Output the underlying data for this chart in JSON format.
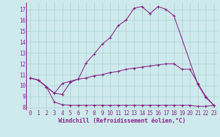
{
  "xlabel": "Windchill (Refroidissement éolien,°C)",
  "background_color": "#ceeaec",
  "grid_color": "#aad0d4",
  "line_color": "#882288",
  "xlim": [
    -0.5,
    23.5
  ],
  "ylim": [
    7.8,
    17.6
  ],
  "xticks": [
    0,
    1,
    2,
    3,
    4,
    5,
    6,
    7,
    8,
    9,
    10,
    11,
    12,
    13,
    14,
    15,
    16,
    17,
    18,
    19,
    20,
    21,
    22,
    23
  ],
  "yticks": [
    8,
    9,
    10,
    11,
    12,
    13,
    14,
    15,
    16,
    17
  ],
  "series1_x": [
    0,
    1,
    2,
    3,
    4,
    5,
    6,
    7,
    8,
    9,
    10,
    11,
    12,
    13,
    14,
    15,
    16,
    17,
    18,
    21,
    22,
    23
  ],
  "series1_y": [
    10.7,
    10.5,
    9.9,
    9.3,
    9.2,
    10.3,
    10.6,
    12.1,
    12.9,
    13.8,
    14.4,
    15.5,
    16.0,
    17.1,
    17.25,
    16.6,
    17.25,
    17.0,
    16.4,
    10.1,
    8.9,
    8.2
  ],
  "series2_x": [
    0,
    1,
    2,
    3,
    4,
    5,
    6,
    7,
    8,
    9,
    10,
    11,
    12,
    13,
    14,
    15,
    16,
    17,
    18,
    19,
    20,
    21,
    22,
    23
  ],
  "series2_y": [
    10.7,
    10.5,
    9.9,
    8.5,
    8.25,
    8.2,
    8.2,
    8.2,
    8.2,
    8.2,
    8.2,
    8.2,
    8.2,
    8.2,
    8.2,
    8.2,
    8.2,
    8.2,
    8.2,
    8.2,
    8.2,
    8.1,
    8.1,
    8.2
  ],
  "series3_x": [
    0,
    1,
    2,
    3,
    4,
    5,
    6,
    7,
    8,
    9,
    10,
    11,
    12,
    13,
    14,
    15,
    16,
    17,
    18,
    19,
    20,
    21,
    22,
    23
  ],
  "series3_y": [
    10.7,
    10.5,
    9.9,
    9.3,
    10.2,
    10.4,
    10.6,
    10.7,
    10.9,
    11.0,
    11.2,
    11.3,
    11.5,
    11.6,
    11.7,
    11.8,
    11.9,
    12.0,
    12.0,
    11.5,
    11.5,
    10.2,
    9.0,
    8.2
  ],
  "tick_fontsize": 5.5,
  "xlabel_fontsize": 6.0
}
